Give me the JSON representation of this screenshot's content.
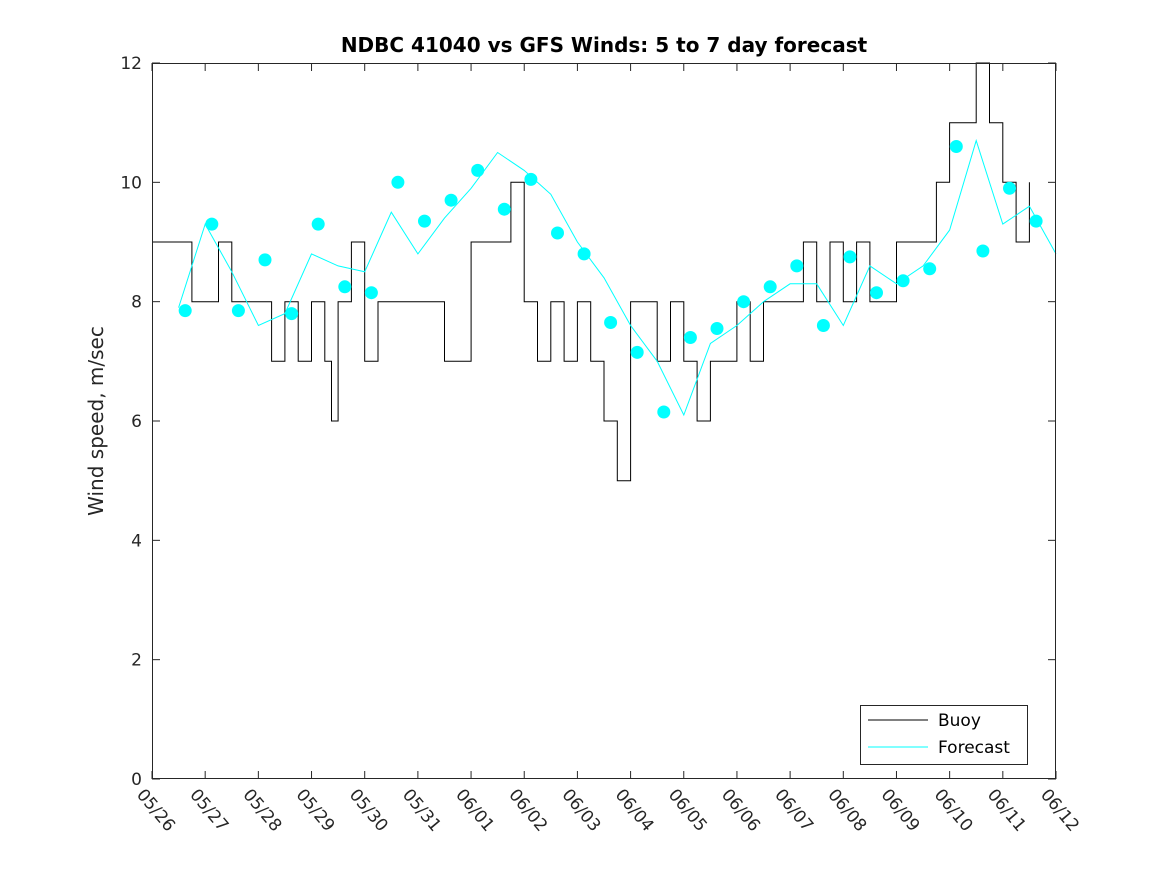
{
  "chart_data": {
    "type": "line",
    "title": "NDBC 41040 vs GFS Winds: 5 to 7 day forecast",
    "xlabel": "",
    "ylabel": "Wind speed, m/sec",
    "ylim": [
      0,
      12
    ],
    "yticks": [
      "0",
      "2",
      "4",
      "6",
      "8",
      "10",
      "12"
    ],
    "xlim": [
      "05/26",
      "06/12"
    ],
    "xticks": [
      "05/26",
      "05/27",
      "05/28",
      "05/29",
      "05/30",
      "05/31",
      "06/01",
      "06/02",
      "06/03",
      "06/04",
      "06/05",
      "06/06",
      "06/07",
      "06/08",
      "06/09",
      "06/10",
      "06/11",
      "06/12"
    ],
    "grid": false,
    "legend": {
      "placement": "bottom-right",
      "entries": [
        "Buoy",
        "Forecast"
      ]
    },
    "colors": {
      "buoy": "#000000",
      "forecast": "#00ffff",
      "axis": "#262626"
    },
    "series": [
      {
        "name": "Buoy",
        "style": "line",
        "x": [
          "05/26 00:00",
          "05/26 12:00",
          "05/26 18:00",
          "05/27 00:00",
          "05/27 06:00",
          "05/27 12:00",
          "05/28 00:00",
          "05/28 06:00",
          "05/28 12:00",
          "05/28 18:00",
          "05/29 00:00",
          "05/29 06:00",
          "05/29 09:00",
          "05/29 12:00",
          "05/29 18:00",
          "05/30 00:00",
          "05/30 06:00",
          "05/30 12:00",
          "05/31 00:00",
          "05/31 06:00",
          "05/31 12:00",
          "06/01 00:00",
          "06/01 06:00",
          "06/01 12:00",
          "06/01 18:00",
          "06/02 00:00",
          "06/02 06:00",
          "06/02 12:00",
          "06/02 18:00",
          "06/03 00:00",
          "06/03 06:00",
          "06/03 12:00",
          "06/03 18:00",
          "06/04 00:00",
          "06/04 06:00",
          "06/04 12:00",
          "06/04 18:00",
          "06/05 00:00",
          "06/05 06:00",
          "06/05 12:00",
          "06/06 00:00",
          "06/06 06:00",
          "06/06 12:00",
          "06/06 18:00",
          "06/07 00:00",
          "06/07 06:00",
          "06/07 12:00",
          "06/07 18:00",
          "06/08 00:00",
          "06/08 06:00",
          "06/08 12:00",
          "06/08 18:00",
          "06/09 00:00",
          "06/09 06:00",
          "06/09 12:00",
          "06/09 18:00",
          "06/10 00:00",
          "06/10 06:00",
          "06/10 12:00",
          "06/10 18:00",
          "06/11 00:00",
          "06/11 06:00",
          "06/11 12:00"
        ],
        "y": [
          9,
          9,
          8,
          8,
          9,
          8,
          8,
          7,
          8,
          7,
          8,
          7,
          6,
          8,
          9,
          7,
          8,
          8,
          8,
          8,
          7,
          9,
          9,
          9,
          10,
          8,
          7,
          8,
          7,
          8,
          7,
          6,
          5,
          8,
          8,
          7,
          8,
          7,
          6,
          7,
          8,
          7,
          8,
          8,
          8,
          9,
          8,
          9,
          8,
          9,
          8,
          8,
          9,
          9,
          9,
          10,
          11,
          11,
          12,
          11,
          10,
          9,
          10
        ]
      },
      {
        "name": "Forecast",
        "style": "line",
        "x": [
          "05/26 12:00",
          "05/27 00:00",
          "05/27 12:00",
          "05/28 00:00",
          "05/28 12:00",
          "05/29 00:00",
          "05/29 12:00",
          "05/30 00:00",
          "05/30 12:00",
          "05/31 00:00",
          "05/31 12:00",
          "06/01 00:00",
          "06/01 12:00",
          "06/02 00:00",
          "06/02 12:00",
          "06/03 00:00",
          "06/03 12:00",
          "06/04 00:00",
          "06/04 12:00",
          "06/05 00:00",
          "06/05 12:00",
          "06/06 00:00",
          "06/06 12:00",
          "06/07 00:00",
          "06/07 12:00",
          "06/08 00:00",
          "06/08 12:00",
          "06/09 00:00",
          "06/09 12:00",
          "06/10 00:00",
          "06/10 12:00",
          "06/11 00:00",
          "06/11 12:00",
          "06/12 00:00"
        ],
        "y": [
          7.9,
          9.3,
          8.5,
          7.6,
          7.8,
          8.8,
          8.6,
          8.5,
          9.5,
          8.8,
          9.4,
          9.9,
          10.5,
          10.2,
          9.8,
          9.0,
          8.4,
          7.6,
          7.0,
          6.1,
          7.3,
          7.6,
          8.0,
          8.3,
          8.3,
          7.6,
          8.6,
          8.3,
          8.6,
          9.2,
          10.7,
          9.3,
          9.6,
          8.8
        ]
      },
      {
        "name": "Forecast",
        "style": "markers",
        "x": [
          "05/26 15:00",
          "05/27 03:00",
          "05/27 15:00",
          "05/28 03:00",
          "05/28 15:00",
          "05/29 03:00",
          "05/29 15:00",
          "05/30 03:00",
          "05/30 15:00",
          "05/31 03:00",
          "05/31 15:00",
          "06/01 03:00",
          "06/01 15:00",
          "06/02 03:00",
          "06/02 15:00",
          "06/03 03:00",
          "06/03 15:00",
          "06/04 03:00",
          "06/04 15:00",
          "06/05 03:00",
          "06/05 15:00",
          "06/06 03:00",
          "06/06 15:00",
          "06/07 03:00",
          "06/07 15:00",
          "06/08 03:00",
          "06/08 15:00",
          "06/09 03:00",
          "06/09 15:00",
          "06/10 03:00",
          "06/10 15:00",
          "06/11 03:00",
          "06/11 15:00"
        ],
        "y": [
          7.85,
          9.3,
          7.85,
          8.7,
          7.8,
          9.3,
          8.25,
          8.15,
          10.0,
          9.35,
          9.7,
          10.2,
          9.55,
          10.05,
          9.15,
          8.8,
          7.65,
          7.15,
          6.15,
          7.4,
          7.55,
          8.0,
          8.25,
          8.6,
          7.6,
          8.75,
          8.15,
          8.35,
          8.55,
          10.6,
          8.85,
          9.9,
          9.35
        ]
      }
    ]
  }
}
